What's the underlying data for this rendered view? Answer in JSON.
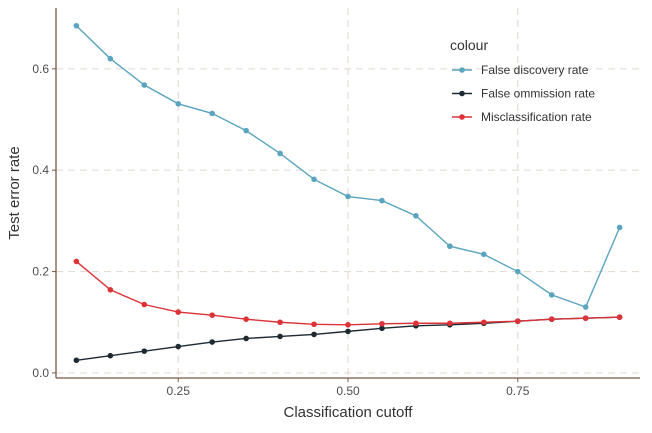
{
  "chart_data": {
    "type": "line",
    "xlabel": "Classification cutoff",
    "ylabel": "Test error rate",
    "xlim": [
      0.07,
      0.93
    ],
    "ylim": [
      -0.01,
      0.72
    ],
    "x_ticks": [
      0.25,
      0.5,
      0.75
    ],
    "x_tick_labels": [
      "0.25",
      "0.50",
      "0.75"
    ],
    "y_ticks": [
      0.0,
      0.2,
      0.4,
      0.6
    ],
    "y_tick_labels": [
      "0.0",
      "0.2",
      "0.4",
      "0.6"
    ],
    "grid": true,
    "legend": {
      "title": "colour",
      "position": "top-right"
    },
    "x": [
      0.1,
      0.15,
      0.2,
      0.25,
      0.3,
      0.35,
      0.4,
      0.45,
      0.5,
      0.55,
      0.6,
      0.65,
      0.7,
      0.75,
      0.8,
      0.85,
      0.9
    ],
    "series": [
      {
        "name": "False discovery rate",
        "color": "#5aa4be",
        "values": [
          0.685,
          0.62,
          0.568,
          0.531,
          0.512,
          0.478,
          0.433,
          0.382,
          0.348,
          0.34,
          0.31,
          0.25,
          0.234,
          0.2,
          0.154,
          0.13,
          0.287
        ]
      },
      {
        "name": "False ommission rate",
        "color": "#1e2a32",
        "values": [
          0.025,
          0.034,
          0.043,
          0.052,
          0.061,
          0.068,
          0.072,
          0.076,
          0.082,
          0.088,
          0.093,
          0.095,
          0.098,
          0.102,
          0.106,
          0.108,
          0.11
        ]
      },
      {
        "name": "Misclassification rate",
        "color": "#dc3238",
        "values": [
          0.22,
          0.164,
          0.135,
          0.12,
          0.114,
          0.106,
          0.1,
          0.096,
          0.095,
          0.097,
          0.098,
          0.098,
          0.1,
          0.102,
          0.106,
          0.108,
          0.11
        ]
      }
    ]
  }
}
